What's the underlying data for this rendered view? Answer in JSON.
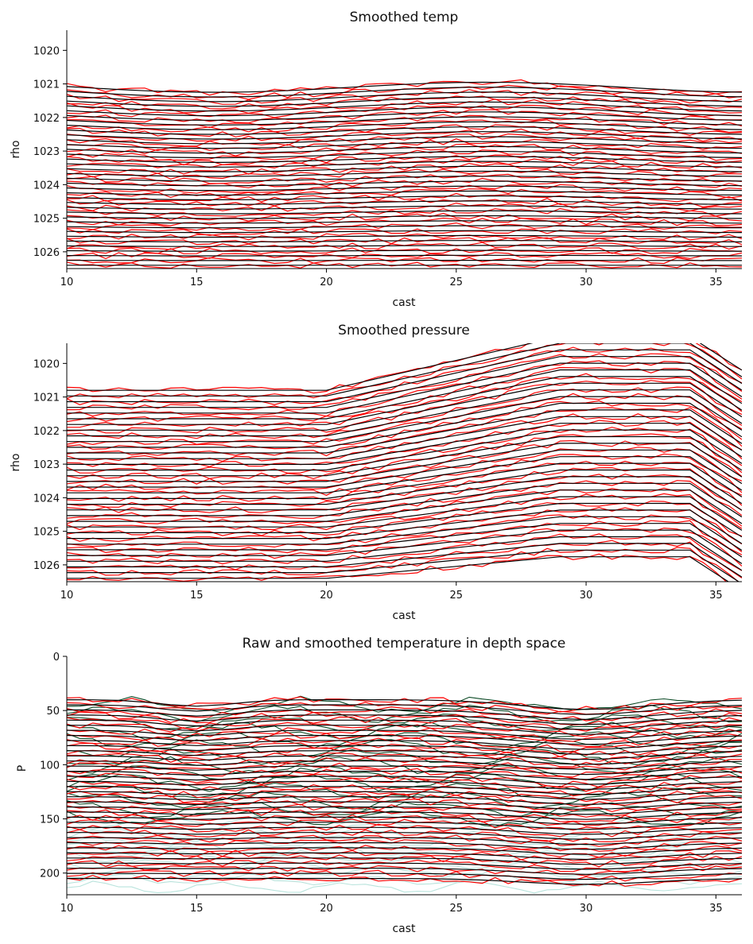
{
  "chart_data": [
    {
      "type": "contour",
      "title": "Smoothed temp",
      "xlabel": "cast",
      "ylabel": "rho",
      "xlim": [
        10,
        36
      ],
      "ylim": [
        1026.5,
        1019.4
      ],
      "y_inverted": true,
      "xticks": [
        10,
        15,
        20,
        25,
        30,
        35
      ],
      "yticks": [
        1020,
        1021,
        1022,
        1023,
        1024,
        1025,
        1026
      ],
      "series": [
        {
          "style": "raw",
          "color": "#ff0000"
        },
        {
          "style": "smoothed",
          "color": "#000000"
        }
      ],
      "line_count": 38,
      "line_levels_start": 1021.1,
      "line_levels_end": 1026.4
    },
    {
      "type": "contour",
      "title": "Smoothed pressure",
      "xlabel": "cast",
      "ylabel": "rho",
      "xlim": [
        10,
        36
      ],
      "ylim": [
        1026.5,
        1019.4
      ],
      "y_inverted": true,
      "xticks": [
        10,
        15,
        20,
        25,
        30,
        35
      ],
      "yticks": [
        1020,
        1021,
        1022,
        1023,
        1024,
        1025,
        1026
      ],
      "series": [
        {
          "style": "raw",
          "color": "#ff0000"
        },
        {
          "style": "smoothed",
          "color": "#000000"
        }
      ],
      "line_count": 34,
      "line_levels_start": 1020.8,
      "line_levels_end": 1026.4
    },
    {
      "type": "contour",
      "title": "Raw and smoothed temperature in depth space",
      "xlabel": "cast",
      "ylabel": "P",
      "xlim": [
        10,
        36
      ],
      "ylim": [
        220,
        0
      ],
      "y_inverted": true,
      "xticks": [
        10,
        15,
        20,
        25,
        30,
        35
      ],
      "yticks": [
        0,
        50,
        100,
        150,
        200
      ],
      "series": [
        {
          "style": "raw",
          "color": "#ff0000"
        },
        {
          "style": "smoothed",
          "color": "#000000"
        },
        {
          "style": "background",
          "color": "#0b4a25"
        },
        {
          "style": "deep",
          "color": "#b8e3dc"
        }
      ],
      "line_count": 36,
      "line_levels_start": 40,
      "line_levels_end": 205
    }
  ],
  "colors": {
    "raw": "#ff0000",
    "smoothed": "#000000",
    "background": "#0b4a25",
    "deep": "#b8e3dc",
    "axis": "#000000"
  }
}
